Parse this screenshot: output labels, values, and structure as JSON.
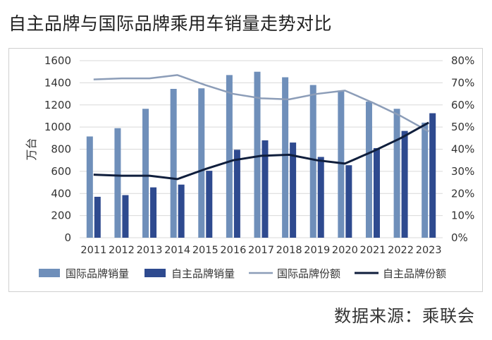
{
  "title": "自主品牌与国际品牌乘用车销量走势对比",
  "source": "数据来源：乘联会",
  "colors": {
    "intl_bar": "#6f8fba",
    "domestic_bar": "#2e4a8f",
    "intl_line": "#8c9db8",
    "domestic_line": "#0f1e3c",
    "grid": "#d9d9d9",
    "text": "#333333"
  },
  "chart_data": {
    "type": "bar",
    "categories": [
      "2011",
      "2012",
      "2013",
      "2014",
      "2015",
      "2016",
      "2017",
      "2018",
      "2019",
      "2020",
      "2021",
      "2022",
      "2023"
    ],
    "ylabel": "万台",
    "ylim": [
      0,
      1600
    ],
    "yticks": [
      "0",
      "200",
      "400",
      "600",
      "800",
      "1000",
      "1200",
      "1400",
      "1600"
    ],
    "y2lim": [
      0,
      80
    ],
    "y2ticks": [
      "0%",
      "10%",
      "20%",
      "30%",
      "40%",
      "50%",
      "60%",
      "70%",
      "80%"
    ],
    "grid": true,
    "legend_position": "bottom",
    "series": [
      {
        "name": "国际品牌销量",
        "kind": "bar",
        "axis": "left",
        "values": [
          915,
          990,
          1165,
          1345,
          1350,
          1470,
          1500,
          1450,
          1380,
          1330,
          1230,
          1165,
          1040
        ]
      },
      {
        "name": "自主品牌销量",
        "kind": "bar",
        "axis": "left",
        "values": [
          370,
          385,
          455,
          480,
          605,
          795,
          880,
          860,
          730,
          655,
          810,
          965,
          1125
        ]
      },
      {
        "name": "国际品牌份额",
        "kind": "line",
        "axis": "right",
        "values": [
          71.5,
          72,
          72,
          73.5,
          69,
          65,
          63,
          62.5,
          65,
          66.5,
          61,
          55,
          48
        ]
      },
      {
        "name": "自主品牌份额",
        "kind": "line",
        "axis": "right",
        "values": [
          28.5,
          28,
          28,
          26.5,
          31,
          35,
          37,
          37.5,
          35,
          33.5,
          39,
          45,
          52
        ]
      }
    ]
  }
}
